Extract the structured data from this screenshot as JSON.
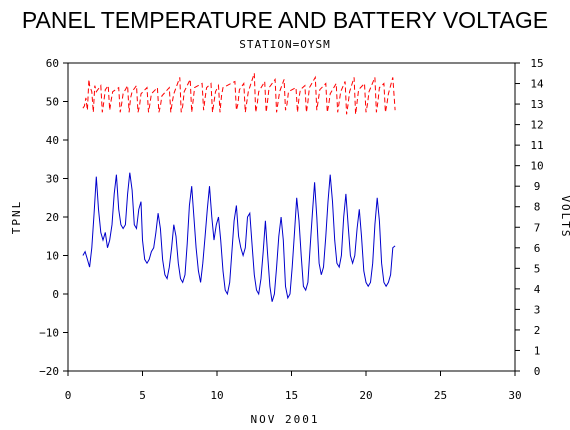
{
  "chart_data": {
    "type": "line",
    "title": "PANEL TEMPERATURE AND BATTERY VOLTAGE",
    "subtitle": "STATION=OYSM",
    "xlabel": "NOV 2001",
    "ylabel": "TPNL",
    "y2label": "VOLTS",
    "xlim": [
      0,
      30
    ],
    "ylim": [
      -20,
      60
    ],
    "y2lim": [
      0,
      15
    ],
    "x_ticks": [
      0,
      5,
      10,
      15,
      20,
      25,
      30
    ],
    "y_ticks": [
      -20,
      -10,
      0,
      10,
      20,
      30,
      40,
      50,
      60
    ],
    "y2_ticks": [
      0,
      1,
      2,
      3,
      4,
      5,
      6,
      7,
      8,
      9,
      10,
      11,
      12,
      13,
      14,
      15
    ],
    "grid": false,
    "series": [
      {
        "axis": "left",
        "color": "#0000cc",
        "points": [
          [
            1.0,
            10
          ],
          [
            1.15,
            11
          ],
          [
            1.3,
            9
          ],
          [
            1.45,
            7
          ],
          [
            1.6,
            12
          ],
          [
            1.75,
            21
          ],
          [
            1.9,
            30.5
          ],
          [
            2.05,
            22
          ],
          [
            2.2,
            16
          ],
          [
            2.35,
            14
          ],
          [
            2.5,
            16
          ],
          [
            2.65,
            12
          ],
          [
            2.8,
            14
          ],
          [
            2.95,
            18
          ],
          [
            3.1,
            26
          ],
          [
            3.25,
            31
          ],
          [
            3.4,
            22
          ],
          [
            3.55,
            18
          ],
          [
            3.7,
            17
          ],
          [
            3.85,
            18
          ],
          [
            4.0,
            26
          ],
          [
            4.15,
            31.5
          ],
          [
            4.3,
            27
          ],
          [
            4.45,
            18
          ],
          [
            4.6,
            17
          ],
          [
            4.75,
            22
          ],
          [
            4.9,
            24
          ],
          [
            5.0,
            14
          ],
          [
            5.15,
            9
          ],
          [
            5.3,
            8
          ],
          [
            5.45,
            9
          ],
          [
            5.6,
            11
          ],
          [
            5.75,
            12
          ],
          [
            5.9,
            16
          ],
          [
            6.05,
            21
          ],
          [
            6.2,
            17
          ],
          [
            6.35,
            9
          ],
          [
            6.5,
            5
          ],
          [
            6.65,
            4
          ],
          [
            6.8,
            7
          ],
          [
            6.95,
            12
          ],
          [
            7.1,
            18
          ],
          [
            7.25,
            15
          ],
          [
            7.4,
            8
          ],
          [
            7.55,
            4
          ],
          [
            7.7,
            3
          ],
          [
            7.85,
            5
          ],
          [
            8.0,
            13
          ],
          [
            8.15,
            23
          ],
          [
            8.3,
            28
          ],
          [
            8.45,
            20
          ],
          [
            8.6,
            12
          ],
          [
            8.75,
            6
          ],
          [
            8.9,
            3
          ],
          [
            9.05,
            8
          ],
          [
            9.2,
            15
          ],
          [
            9.35,
            22
          ],
          [
            9.5,
            28
          ],
          [
            9.65,
            20
          ],
          [
            9.8,
            14
          ],
          [
            9.95,
            18
          ],
          [
            10.1,
            20
          ],
          [
            10.25,
            14
          ],
          [
            10.4,
            6
          ],
          [
            10.55,
            1
          ],
          [
            10.7,
            0
          ],
          [
            10.85,
            3
          ],
          [
            11.0,
            11
          ],
          [
            11.15,
            19
          ],
          [
            11.3,
            23
          ],
          [
            11.45,
            15
          ],
          [
            11.6,
            12
          ],
          [
            11.75,
            10
          ],
          [
            11.9,
            12
          ],
          [
            12.05,
            20
          ],
          [
            12.2,
            21
          ],
          [
            12.35,
            13
          ],
          [
            12.5,
            5
          ],
          [
            12.65,
            1
          ],
          [
            12.8,
            0
          ],
          [
            12.95,
            4
          ],
          [
            13.1,
            11
          ],
          [
            13.25,
            19
          ],
          [
            13.4,
            10
          ],
          [
            13.55,
            2
          ],
          [
            13.7,
            -2
          ],
          [
            13.85,
            0
          ],
          [
            14.0,
            7
          ],
          [
            14.15,
            15
          ],
          [
            14.3,
            20
          ],
          [
            14.45,
            14
          ],
          [
            14.6,
            2
          ],
          [
            14.75,
            -1
          ],
          [
            14.9,
            0
          ],
          [
            15.05,
            7
          ],
          [
            15.2,
            16
          ],
          [
            15.35,
            25
          ],
          [
            15.5,
            19
          ],
          [
            15.65,
            10
          ],
          [
            15.8,
            2
          ],
          [
            15.95,
            1
          ],
          [
            16.1,
            3
          ],
          [
            16.25,
            12
          ],
          [
            16.4,
            21
          ],
          [
            16.55,
            29
          ],
          [
            16.7,
            20
          ],
          [
            16.85,
            8
          ],
          [
            17.0,
            5
          ],
          [
            17.15,
            7
          ],
          [
            17.3,
            15
          ],
          [
            17.45,
            24
          ],
          [
            17.6,
            31
          ],
          [
            17.75,
            24
          ],
          [
            17.9,
            14
          ],
          [
            18.05,
            8
          ],
          [
            18.2,
            7
          ],
          [
            18.35,
            10
          ],
          [
            18.5,
            20
          ],
          [
            18.65,
            26
          ],
          [
            18.8,
            18
          ],
          [
            18.95,
            10
          ],
          [
            19.1,
            8
          ],
          [
            19.25,
            10
          ],
          [
            19.4,
            17
          ],
          [
            19.55,
            22
          ],
          [
            19.7,
            15
          ],
          [
            19.85,
            6
          ],
          [
            20.0,
            3
          ],
          [
            20.15,
            2
          ],
          [
            20.3,
            3
          ],
          [
            20.45,
            8
          ],
          [
            20.6,
            18
          ],
          [
            20.75,
            25
          ],
          [
            20.9,
            19
          ],
          [
            21.05,
            8
          ],
          [
            21.2,
            3
          ],
          [
            21.35,
            2
          ],
          [
            21.5,
            3
          ],
          [
            21.65,
            5
          ],
          [
            21.8,
            12
          ],
          [
            21.95,
            12.5
          ]
        ]
      },
      {
        "axis": "right",
        "color": "#ff0000",
        "points": [
          [
            1.0,
            12.8
          ],
          [
            1.1,
            12.9
          ],
          [
            1.2,
            13.3
          ],
          [
            1.3,
            12.7
          ],
          [
            1.4,
            14.2
          ],
          [
            1.45,
            13.9
          ],
          [
            1.6,
            13.6
          ],
          [
            1.7,
            12.6
          ],
          [
            1.8,
            13.9
          ],
          [
            1.9,
            13.6
          ],
          [
            2.2,
            13.9
          ],
          [
            2.3,
            12.6
          ],
          [
            2.4,
            13.1
          ],
          [
            2.5,
            13.7
          ],
          [
            2.7,
            13.9
          ],
          [
            2.8,
            12.7
          ],
          [
            2.9,
            13.2
          ],
          [
            3.0,
            13.6
          ],
          [
            3.4,
            13.8
          ],
          [
            3.5,
            12.6
          ],
          [
            3.6,
            13.0
          ],
          [
            3.7,
            13.5
          ],
          [
            4.0,
            13.9
          ],
          [
            4.1,
            12.6
          ],
          [
            4.2,
            13.3
          ],
          [
            4.3,
            13.6
          ],
          [
            4.6,
            13.9
          ],
          [
            4.7,
            12.6
          ],
          [
            4.8,
            12.9
          ],
          [
            4.9,
            13.5
          ],
          [
            5.3,
            13.8
          ],
          [
            5.4,
            12.6
          ],
          [
            5.5,
            13.0
          ],
          [
            5.6,
            13.5
          ],
          [
            6.0,
            13.8
          ],
          [
            6.1,
            12.6
          ],
          [
            6.2,
            12.9
          ],
          [
            6.3,
            13.4
          ],
          [
            6.8,
            13.8
          ],
          [
            6.9,
            12.6
          ],
          [
            7.0,
            13.1
          ],
          [
            7.1,
            13.5
          ],
          [
            7.5,
            14.3
          ],
          [
            7.6,
            12.6
          ],
          [
            7.7,
            12.9
          ],
          [
            7.8,
            13.6
          ],
          [
            8.2,
            14.2
          ],
          [
            8.3,
            12.6
          ],
          [
            8.4,
            13.2
          ],
          [
            8.5,
            13.8
          ],
          [
            9.0,
            14.0
          ],
          [
            9.1,
            12.7
          ],
          [
            9.2,
            13.3
          ],
          [
            9.3,
            13.8
          ],
          [
            9.6,
            14.0
          ],
          [
            9.7,
            12.6
          ],
          [
            9.8,
            13.1
          ],
          [
            9.9,
            13.6
          ],
          [
            10.1,
            13.9
          ],
          [
            10.2,
            12.6
          ],
          [
            10.3,
            13.4
          ],
          [
            10.4,
            13.8
          ],
          [
            11.2,
            14.1
          ],
          [
            11.3,
            12.7
          ],
          [
            11.4,
            13.0
          ],
          [
            11.5,
            13.7
          ],
          [
            11.8,
            14.0
          ],
          [
            11.9,
            12.6
          ],
          [
            12.0,
            13.1
          ],
          [
            12.1,
            13.6
          ],
          [
            12.5,
            14.5
          ],
          [
            12.6,
            12.6
          ],
          [
            12.7,
            13.0
          ],
          [
            12.8,
            13.6
          ],
          [
            13.2,
            14.1
          ],
          [
            13.3,
            12.6
          ],
          [
            13.4,
            13.2
          ],
          [
            13.5,
            13.8
          ],
          [
            13.9,
            14.2
          ],
          [
            14.0,
            12.6
          ],
          [
            14.1,
            13.1
          ],
          [
            14.2,
            13.6
          ],
          [
            14.5,
            14.2
          ],
          [
            14.6,
            12.7
          ],
          [
            14.7,
            13.0
          ],
          [
            14.8,
            13.6
          ],
          [
            15.3,
            13.8
          ],
          [
            15.4,
            12.6
          ],
          [
            15.5,
            13.3
          ],
          [
            15.6,
            13.7
          ],
          [
            15.9,
            13.9
          ],
          [
            16.0,
            12.6
          ],
          [
            16.1,
            13.1
          ],
          [
            16.2,
            13.8
          ],
          [
            16.6,
            14.3
          ],
          [
            16.7,
            12.7
          ],
          [
            16.8,
            13.2
          ],
          [
            16.9,
            13.7
          ],
          [
            17.3,
            14.0
          ],
          [
            17.4,
            12.6
          ],
          [
            17.5,
            13.0
          ],
          [
            17.6,
            13.5
          ],
          [
            18.0,
            14.0
          ],
          [
            18.1,
            12.6
          ],
          [
            18.2,
            13.1
          ],
          [
            18.3,
            13.6
          ],
          [
            18.6,
            14.1
          ],
          [
            18.7,
            12.5
          ],
          [
            18.8,
            13.0
          ],
          [
            18.9,
            13.6
          ],
          [
            19.2,
            14.3
          ],
          [
            19.3,
            12.5
          ],
          [
            19.4,
            13.1
          ],
          [
            19.5,
            13.7
          ],
          [
            19.9,
            14.0
          ],
          [
            20.0,
            12.6
          ],
          [
            20.1,
            13.0
          ],
          [
            20.2,
            13.6
          ],
          [
            20.6,
            14.3
          ],
          [
            20.7,
            12.6
          ],
          [
            20.8,
            13.1
          ],
          [
            20.9,
            13.8
          ],
          [
            21.2,
            14.0
          ],
          [
            21.3,
            12.6
          ],
          [
            21.4,
            13.0
          ],
          [
            21.5,
            13.5
          ],
          [
            21.8,
            14.3
          ],
          [
            21.95,
            12.7
          ]
        ]
      }
    ]
  }
}
